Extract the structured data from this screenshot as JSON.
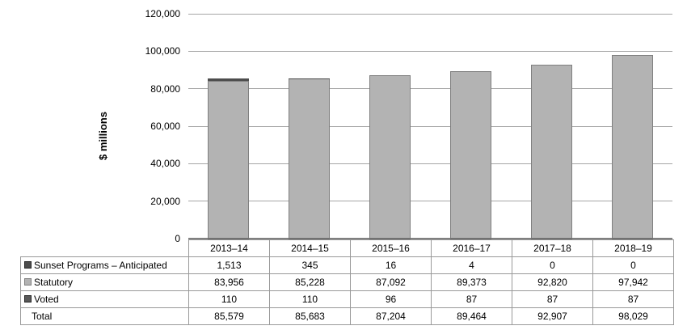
{
  "chart_data": {
    "type": "bar",
    "stacked": true,
    "title": "",
    "ylabel": "$ millions",
    "xlabel": "",
    "ylim": [
      0,
      120000
    ],
    "grid": true,
    "legend_position": "table-keys-below",
    "categories": [
      "2013–14",
      "2014–15",
      "2015–16",
      "2016–17",
      "2017–18",
      "2018–19"
    ],
    "series": [
      {
        "name": "Sunset Programs – Anticipated",
        "color": "#4d4d4d",
        "key_border": "#262626",
        "values": [
          1513,
          345,
          16,
          4,
          0,
          0
        ],
        "labels": [
          "1,513",
          "345",
          "16",
          "4",
          "0",
          "0"
        ]
      },
      {
        "name": "Statutory",
        "color": "#b3b3b3",
        "key_border": "#7f7f7f",
        "border": "#7f7f7f",
        "values": [
          83956,
          85228,
          87092,
          89373,
          92820,
          97942
        ],
        "labels": [
          "83,956",
          "85,228",
          "87,092",
          "89,373",
          "92,820",
          "97,942"
        ]
      },
      {
        "name": "Voted",
        "color": "#595959",
        "key_border": "#262626",
        "values": [
          110,
          110,
          96,
          87,
          87,
          87
        ],
        "labels": [
          "110",
          "110",
          "96",
          "87",
          "87",
          "87"
        ]
      }
    ],
    "total": {
      "name": "Total",
      "labels": [
        "85,579",
        "85,683",
        "87,204",
        "89,464",
        "92,907",
        "98,029"
      ]
    },
    "yticks": {
      "values": [
        0,
        20000,
        40000,
        60000,
        80000,
        100000,
        120000
      ],
      "labels": [
        "0",
        "20,000",
        "40,000",
        "60,000",
        "80,000",
        "100,000",
        "120,000"
      ]
    },
    "colors": {
      "gridline": "#a6a6a6",
      "axis_line": "#808080",
      "table_border": "#999999",
      "text": "#000000",
      "background": "#ffffff"
    }
  }
}
